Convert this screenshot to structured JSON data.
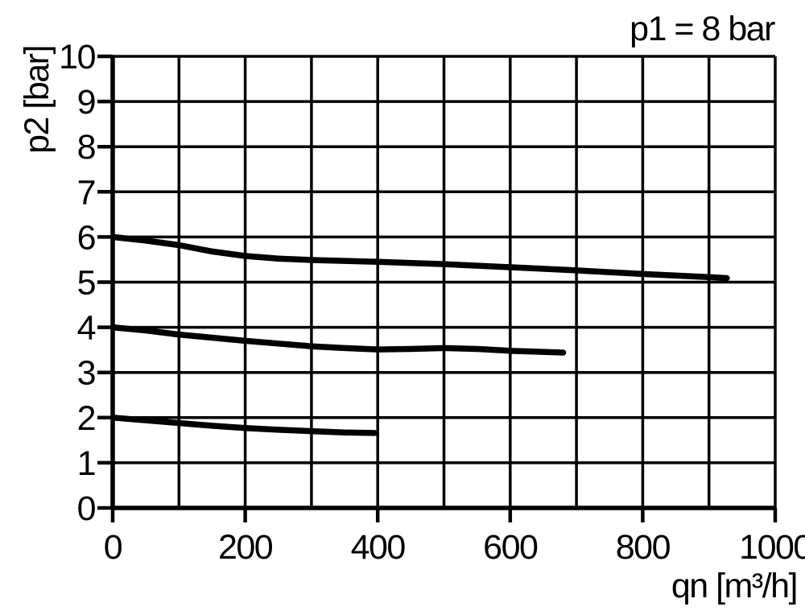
{
  "chart_data": {
    "type": "line",
    "title": "p1 = 8 bar",
    "xlabel": "qn [m³/h]",
    "ylabel": "p2 [bar]",
    "xlim": [
      0,
      1000
    ],
    "ylim": [
      0,
      10
    ],
    "grid": true,
    "grid_x_step": 100,
    "grid_y_step": 1,
    "x_tick_labels": [
      "0",
      "200",
      "400",
      "600",
      "800",
      "1000"
    ],
    "y_tick_labels": [
      "0",
      "1",
      "2",
      "3",
      "4",
      "5",
      "6",
      "7",
      "8",
      "9",
      "10"
    ],
    "legend": "none",
    "colors": {
      "background": "#ffffff",
      "ink": "#000000"
    },
    "series": [
      {
        "name": "curve-upper-set-6-bar",
        "points": [
          [
            0,
            6.0
          ],
          [
            50,
            5.92
          ],
          [
            100,
            5.82
          ],
          [
            150,
            5.68
          ],
          [
            200,
            5.58
          ],
          [
            250,
            5.52
          ],
          [
            300,
            5.49
          ],
          [
            400,
            5.45
          ],
          [
            500,
            5.4
          ],
          [
            600,
            5.33
          ],
          [
            700,
            5.26
          ],
          [
            800,
            5.18
          ],
          [
            900,
            5.11
          ],
          [
            927,
            5.09
          ]
        ]
      },
      {
        "name": "curve-middle-set-4-bar",
        "points": [
          [
            0,
            4.0
          ],
          [
            50,
            3.93
          ],
          [
            100,
            3.84
          ],
          [
            150,
            3.77
          ],
          [
            200,
            3.7
          ],
          [
            250,
            3.64
          ],
          [
            300,
            3.58
          ],
          [
            350,
            3.54
          ],
          [
            400,
            3.51
          ],
          [
            450,
            3.52
          ],
          [
            500,
            3.54
          ],
          [
            550,
            3.52
          ],
          [
            600,
            3.48
          ],
          [
            640,
            3.46
          ],
          [
            680,
            3.44
          ]
        ]
      },
      {
        "name": "curve-lower-set-2-bar",
        "points": [
          [
            0,
            2.0
          ],
          [
            50,
            1.94
          ],
          [
            100,
            1.88
          ],
          [
            150,
            1.82
          ],
          [
            200,
            1.77
          ],
          [
            250,
            1.73
          ],
          [
            300,
            1.7
          ],
          [
            350,
            1.67
          ],
          [
            395,
            1.66
          ]
        ]
      }
    ]
  }
}
